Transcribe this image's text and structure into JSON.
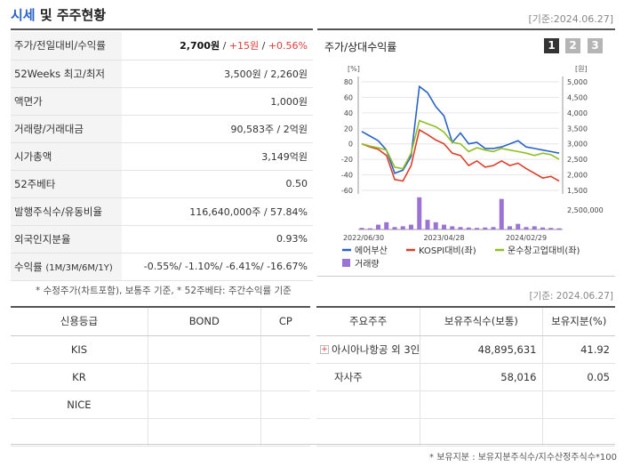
{
  "header": {
    "title_part1": "시세",
    "title_part2": " 및 주주현황",
    "date": "[기준:2024.06.27]"
  },
  "quote": {
    "rows": [
      {
        "label": "주가/전일대비/수익률",
        "v1": "2,700원",
        "sep1": " / ",
        "v2": "+15원",
        "sep2": " / ",
        "v3": "+0.56%"
      },
      {
        "label": "52Weeks 최고/최저",
        "value": "3,500원 / 2,260원"
      },
      {
        "label": "액면가",
        "value": "1,000원"
      },
      {
        "label": "거래량/거래대금",
        "value": "90,583주 / 2억원"
      },
      {
        "label": "시가총액",
        "value": "3,149억원"
      },
      {
        "label": "52주베타",
        "value": "0.50"
      },
      {
        "label": "발행주식수/유동비율",
        "value": "116,640,000주 / 57.84%"
      },
      {
        "label": "외국인지분율",
        "value": "0.93%"
      }
    ],
    "return_label": "수익률",
    "return_sub": "(1M/3M/6M/1Y)",
    "returns": "-0.55%/ -1.10%/ -6.41%/ -16.67%",
    "footnote": "* 수정주가(차트포함), 보통주 기준, * 52주베타: 주간수익률 기준"
  },
  "chart": {
    "title": "주가/상대수익률",
    "pages": [
      "1",
      "2",
      "3"
    ],
    "left_unit": "[%]",
    "right_unit": "[원]",
    "left_ticks": [
      "80",
      "60",
      "40",
      "20",
      "0",
      "-20",
      "-40",
      "-60"
    ],
    "right_ticks": [
      "5,000",
      "4,500",
      "4,000",
      "3,500",
      "3,000",
      "2,500",
      "2,000",
      "1,500"
    ],
    "volume_tick": "2,500,000",
    "x_ticks": [
      "2022/06/30",
      "2023/04/28",
      "2024/02/29"
    ],
    "legend": [
      "에어부산",
      "KOSPI대비(좌)",
      "운수창고업대비(좌)",
      "거래량"
    ],
    "colors": {
      "price": "#2a63c6",
      "kospi": "#d9402a",
      "sector": "#8fbf22",
      "volume": "#9b72d6"
    }
  },
  "chart_data": {
    "type": "line",
    "x": [
      "2022/06",
      "2022/07",
      "2022/08",
      "2022/09",
      "2022/10",
      "2022/11",
      "2022/12",
      "2023/01",
      "2023/02",
      "2023/03",
      "2023/04",
      "2023/05",
      "2023/06",
      "2023/07",
      "2023/08",
      "2023/09",
      "2023/10",
      "2023/11",
      "2023/12",
      "2024/01",
      "2024/02",
      "2024/03",
      "2024/04",
      "2024/05",
      "2024/06"
    ],
    "series": [
      {
        "name": "에어부산",
        "axis": "right",
        "values": [
          3400,
          3250,
          3100,
          2800,
          2050,
          2150,
          2600,
          4850,
          4650,
          4200,
          3900,
          3050,
          3350,
          3000,
          3050,
          2850,
          2850,
          2900,
          3000,
          3100,
          2900,
          2850,
          2800,
          2750,
          2700
        ]
      },
      {
        "name": "KOSPI대비(좌)",
        "axis": "left",
        "values": [
          0,
          -4,
          -7,
          -15,
          -46,
          -48,
          -28,
          18,
          12,
          5,
          0,
          -12,
          -15,
          -28,
          -22,
          -30,
          -28,
          -22,
          -28,
          -25,
          -32,
          -38,
          -44,
          -42,
          -48
        ]
      },
      {
        "name": "운수창고업대비(좌)",
        "axis": "left",
        "values": [
          0,
          -3,
          -5,
          -8,
          -30,
          -32,
          -12,
          30,
          26,
          22,
          15,
          2,
          0,
          -10,
          -5,
          -8,
          -10,
          -6,
          -8,
          -10,
          -12,
          -15,
          -12,
          -14,
          -20
        ]
      },
      {
        "name": "거래량",
        "axis": "volume",
        "values": [
          200000,
          150000,
          600000,
          900000,
          300000,
          400000,
          600000,
          4000000,
          1200000,
          900000,
          600000,
          400000,
          300000,
          250000,
          200000,
          250000,
          300000,
          3800000,
          400000,
          700000,
          300000,
          400000,
          250000,
          200000,
          150000
        ]
      }
    ],
    "ylim_left": [
      -60,
      80
    ],
    "ylim_right": [
      1500,
      5000
    ]
  },
  "credit": {
    "headers": [
      "신용등급",
      "BOND",
      "CP"
    ],
    "rows": [
      [
        "KIS",
        "",
        ""
      ],
      [
        "KR",
        "",
        ""
      ],
      [
        "NICE",
        "",
        ""
      ],
      [
        "",
        "",
        ""
      ]
    ]
  },
  "holders": {
    "date": "[기준: 2024.06.27]",
    "headers": [
      "주요주주",
      "보유주식수(보통)",
      "보유지분(%)"
    ],
    "rows": [
      {
        "name": "아시아나항공 외 3인",
        "shares": "48,895,631",
        "pct": "41.92",
        "expand": "+"
      },
      {
        "name": "자사주",
        "shares": "58,016",
        "pct": "0.05",
        "expand": ""
      }
    ],
    "footnote": "* 보유지분 : 보유지분주식수/지수산정주식수*100"
  }
}
